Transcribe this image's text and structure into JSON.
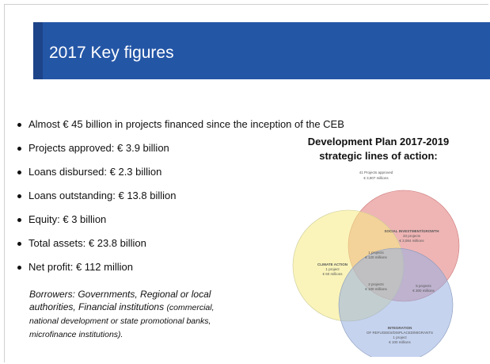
{
  "title": "2017 Key figures",
  "bullets": [
    "Almost € 45 billion in projects financed since the inception of the CEB",
    "Projects approved: € 3.9 billion",
    "Loans disbursed: € 2.3 billion",
    "Loans outstanding: € 13.8 billion",
    "Equity: € 3 billion",
    "Total assets: € 23.8 billion",
    "Net profit: € 112 million"
  ],
  "venn": {
    "heading": [
      "Development Plan 2017-2019",
      "strategic lines of action:"
    ],
    "summary": [
      "41 Projects approved",
      "€ 3,907 millions"
    ],
    "social": [
      "SOCIAL INVESTMENT/GROWTH",
      "33 projects",
      "€ 3,084 millions"
    ],
    "climate": [
      "CLIMATE ACTION",
      "1 project",
      "€ 60 millions"
    ],
    "integration": [
      "INTEGRATION",
      "OF REFUGEES/DISPLACED/MIGRANTS",
      "1 project",
      "€ 100 millions"
    ],
    "social_climate": [
      "1 projects",
      "€ 120 millions"
    ],
    "all_three": [
      "2 projects",
      "€ 100 millions"
    ],
    "social_integration": [
      "5 projects",
      "€ 300 millions"
    ]
  },
  "note": {
    "main": "Borrowers: Governments, Regional or local authorities, Financial institutions",
    "detail": "(commercial, national development or state promotional banks, microfinance institutions)."
  }
}
